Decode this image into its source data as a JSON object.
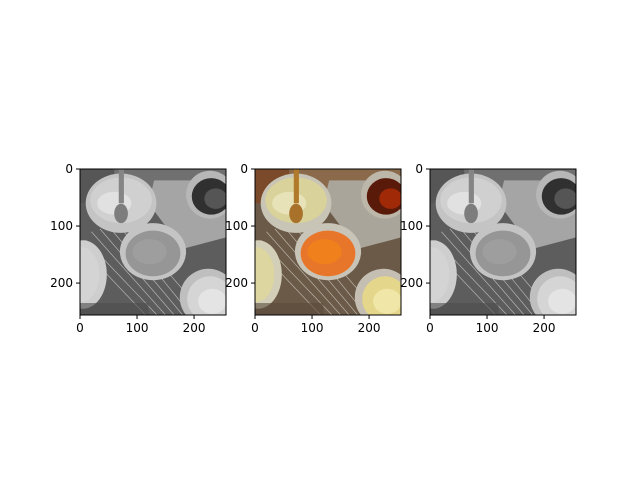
{
  "figure": {
    "panels": [
      {
        "id": "grayscale-left",
        "mode": "grayscale",
        "x_ticks": [
          "0",
          "100",
          "200"
        ],
        "y_ticks": [
          "0",
          "100",
          "200"
        ],
        "x_tick_values": [
          0,
          100,
          200
        ],
        "y_tick_values": [
          0,
          100,
          200
        ],
        "image_extent": [
          256,
          256
        ]
      },
      {
        "id": "color-middle",
        "mode": "color",
        "x_ticks": [
          "0",
          "100",
          "200"
        ],
        "y_ticks": [
          "0",
          "100",
          "200"
        ],
        "x_tick_values": [
          0,
          100,
          200
        ],
        "y_tick_values": [
          0,
          100,
          200
        ],
        "image_extent": [
          256,
          256
        ]
      },
      {
        "id": "grayscale-right",
        "mode": "grayscale",
        "x_ticks": [
          "0",
          "100",
          "200"
        ],
        "y_ticks": [
          "0",
          "100",
          "200"
        ],
        "x_tick_values": [
          0,
          100,
          200
        ],
        "y_tick_values": [
          0,
          100,
          200
        ],
        "image_extent": [
          256,
          256
        ]
      }
    ]
  }
}
